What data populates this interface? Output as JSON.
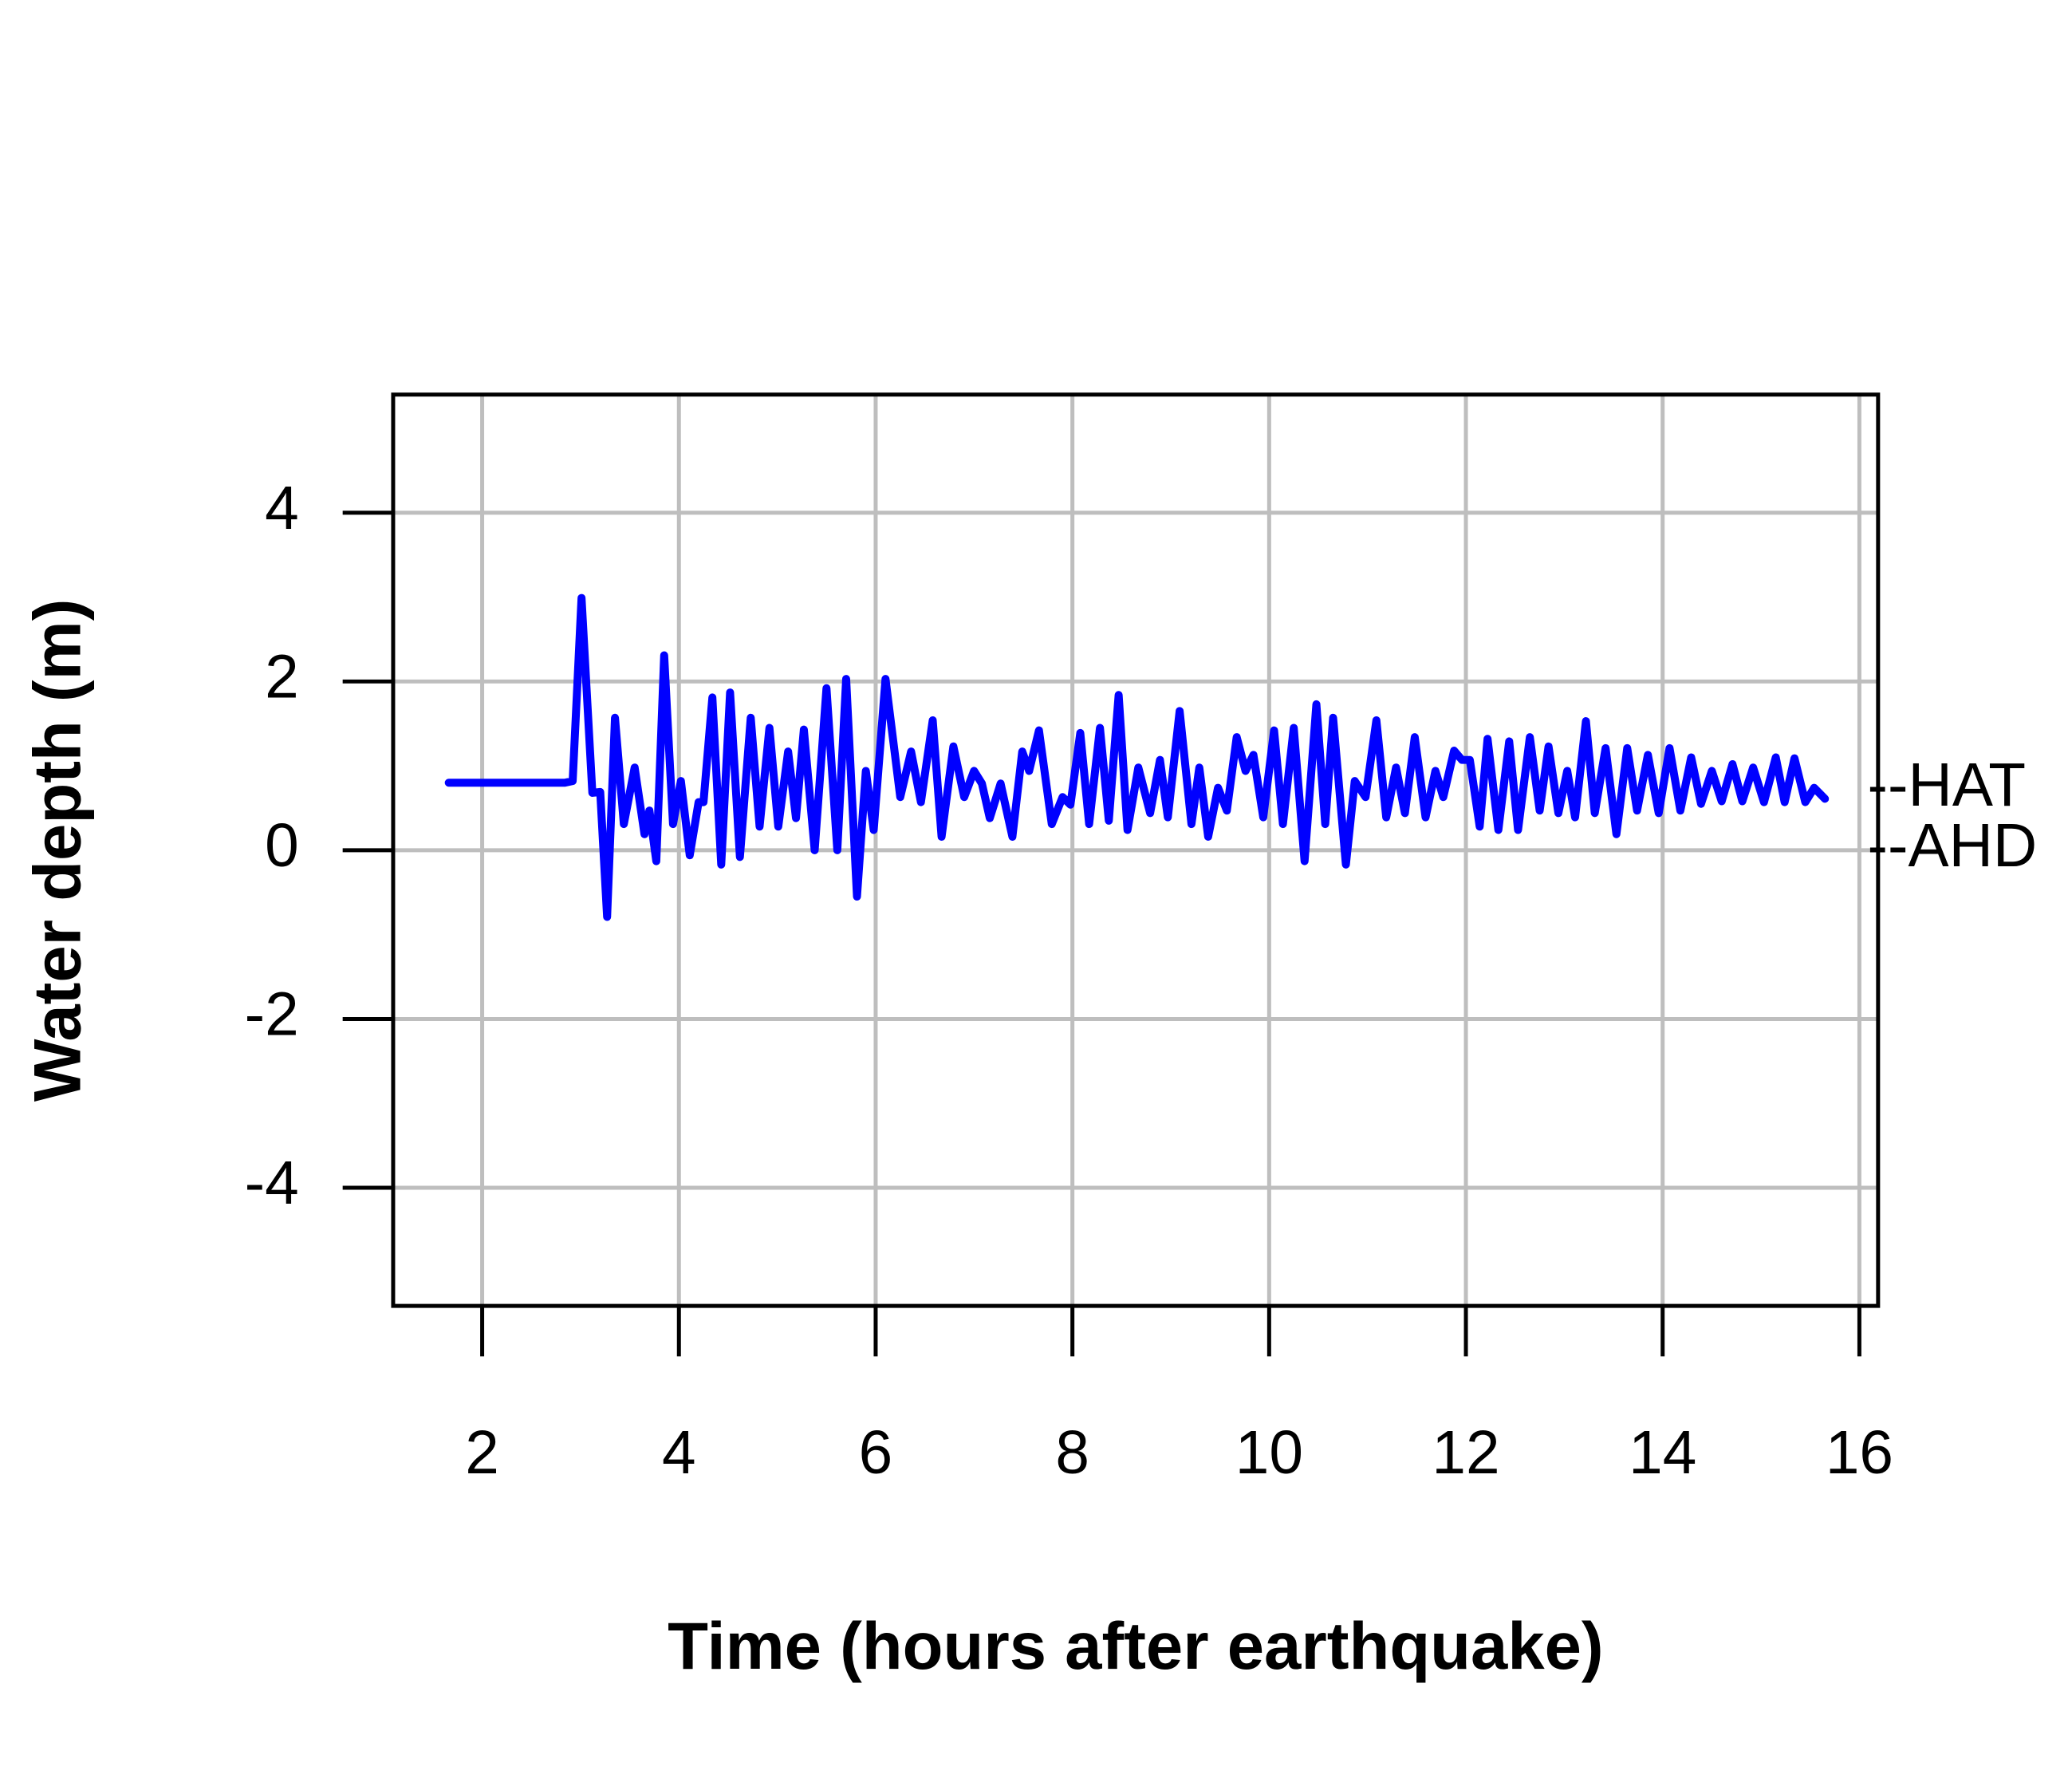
{
  "chart_data": {
    "type": "line",
    "xlabel": "Time (hours after earthquake)",
    "ylabel": "Water depth (m)",
    "xlim": [
      1.095,
      16.19
    ],
    "ylim": [
      -5.4,
      5.4
    ],
    "xticks": [
      2,
      4,
      6,
      8,
      10,
      12,
      14,
      16
    ],
    "yticks": [
      -4,
      -2,
      0,
      2,
      4
    ],
    "grid": true,
    "color": "#0000ff",
    "annotations": [
      {
        "text": "--HAT",
        "y": 0.72
      },
      {
        "text": "--AHD",
        "y": 0
      }
    ],
    "x": [
      1.66,
      2.84,
      2.92,
      3.01,
      3.12,
      3.2,
      3.27,
      3.35,
      3.44,
      3.55,
      3.65,
      3.7,
      3.77,
      3.85,
      3.94,
      4.02,
      4.11,
      4.2,
      4.25,
      4.34,
      4.43,
      4.52,
      4.62,
      4.73,
      4.82,
      4.92,
      5.01,
      5.11,
      5.19,
      5.27,
      5.38,
      5.5,
      5.61,
      5.7,
      5.81,
      5.9,
      5.98,
      6.1,
      6.25,
      6.36,
      6.46,
      6.58,
      6.67,
      6.79,
      6.9,
      7.0,
      7.08,
      7.16,
      7.27,
      7.39,
      7.49,
      7.56,
      7.66,
      7.79,
      7.9,
      7.98,
      8.08,
      8.17,
      8.28,
      8.37,
      8.47,
      8.56,
      8.67,
      8.79,
      8.89,
      8.97,
      9.09,
      9.21,
      9.29,
      9.38,
      9.48,
      9.57,
      9.67,
      9.76,
      9.84,
      9.94,
      10.05,
      10.14,
      10.25,
      10.36,
      10.48,
      10.57,
      10.65,
      10.78,
      10.87,
      10.98,
      11.09,
      11.19,
      11.29,
      11.38,
      11.48,
      11.59,
      11.69,
      11.77,
      11.88,
      11.96,
      12.04,
      12.14,
      12.22,
      12.33,
      12.44,
      12.53,
      12.65,
      12.75,
      12.84,
      12.94,
      13.03,
      13.11,
      13.22,
      13.31,
      13.42,
      13.53,
      13.64,
      13.74,
      13.85,
      13.96,
      14.07,
      14.18,
      14.29,
      14.39,
      14.5,
      14.6,
      14.71,
      14.81,
      14.92,
      15.03,
      15.15,
      15.24,
      15.34,
      15.45,
      15.54,
      15.65
    ],
    "values": [
      0.8,
      0.8,
      0.82,
      2.99,
      0.68,
      0.69,
      -0.79,
      1.57,
      0.31,
      0.98,
      0.19,
      0.47,
      -0.13,
      2.31,
      0.31,
      0.82,
      -0.06,
      0.57,
      0.57,
      1.81,
      -0.17,
      1.87,
      -0.08,
      1.57,
      0.28,
      1.45,
      0.28,
      1.17,
      0.38,
      1.43,
      0,
      1.92,
      0,
      2.03,
      -0.55,
      0.94,
      0.24,
      2.03,
      0.63,
      1.17,
      0.57,
      1.54,
      0.16,
      1.23,
      0.63,
      0.94,
      0.79,
      0.38,
      0.79,
      0.16,
      1.17,
      0.94,
      1.42,
      0.31,
      0.63,
      0.54,
      1.39,
      0.31,
      1.45,
      0.35,
      1.84,
      0.24,
      0.98,
      0.44,
      1.07,
      0.39,
      1.65,
      0.31,
      0.98,
      0.16,
      0.74,
      0.47,
      1.34,
      0.94,
      1.13,
      0.39,
      1.42,
      0.31,
      1.45,
      -0.13,
      1.73,
      0.31,
      1.57,
      -0.17,
      0.82,
      0.63,
      1.54,
      0.39,
      0.98,
      0.44,
      1.34,
      0.39,
      0.94,
      0.63,
      1.18,
      1.07,
      1.07,
      0.28,
      1.32,
      0.24,
      1.29,
      0.24,
      1.34,
      0.47,
      1.23,
      0.44,
      0.94,
      0.39,
      1.53,
      0.44,
      1.21,
      0.19,
      1.21,
      0.47,
      1.13,
      0.44,
      1.21,
      0.47,
      1.1,
      0.55,
      0.94,
      0.58,
      1.02,
      0.58,
      0.98,
      0.57,
      1.1,
      0.57,
      1.09,
      0.57,
      0.74,
      0.61
    ]
  }
}
